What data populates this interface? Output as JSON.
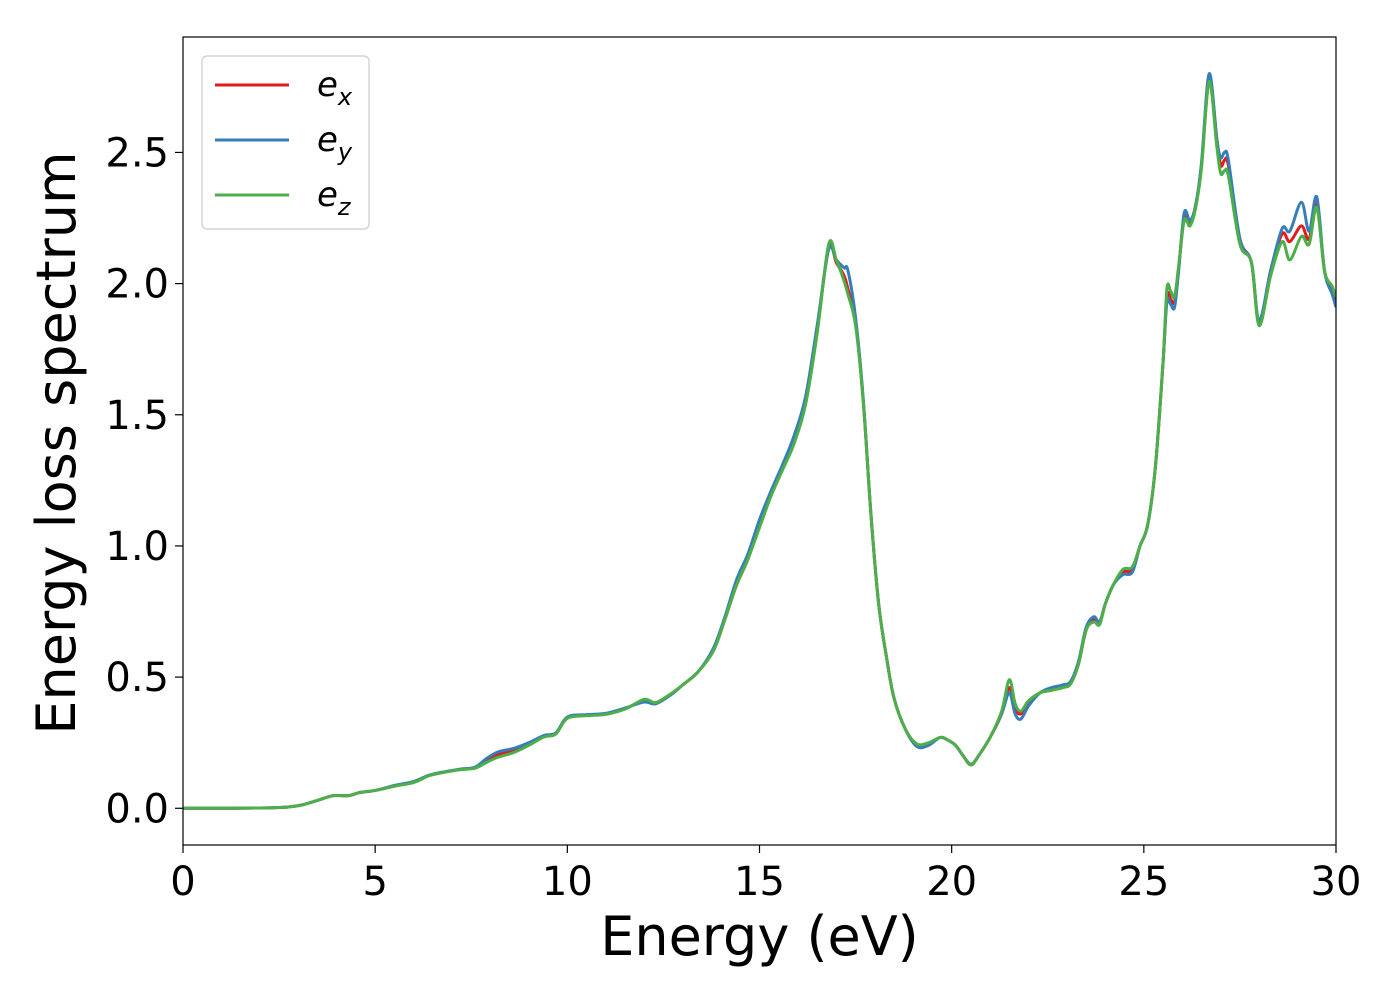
{
  "chart_data": {
    "type": "line",
    "xlabel": "Energy (eV)",
    "ylabel": "Energy loss spectrum",
    "xlim": [
      0,
      30
    ],
    "ylim": [
      -0.14,
      2.94
    ],
    "xticks": [
      0,
      5,
      10,
      15,
      20,
      25,
      30
    ],
    "yticks": [
      0.0,
      0.5,
      1.0,
      1.5,
      2.0,
      2.5
    ],
    "xtick_labels": [
      "0",
      "5",
      "10",
      "15",
      "20",
      "25",
      "30"
    ],
    "ytick_labels": [
      "0.0",
      "0.5",
      "1.0",
      "1.5",
      "2.0",
      "2.5"
    ],
    "grid": false,
    "legend": "top-left",
    "series": [
      {
        "name": "e_x",
        "base": "e",
        "sub": "x",
        "color": "#e41a1c",
        "x": [
          0,
          1,
          2,
          2.5,
          2.8,
          3.1,
          3.5,
          3.9,
          4.3,
          4.6,
          5.0,
          5.5,
          6.0,
          6.4,
          6.8,
          7.2,
          7.6,
          7.9,
          8.2,
          8.6,
          9.0,
          9.4,
          9.7,
          10.0,
          10.5,
          11.0,
          11.5,
          12.0,
          12.3,
          12.7,
          13.0,
          13.4,
          13.8,
          14.1,
          14.4,
          14.7,
          15.0,
          15.3,
          15.6,
          15.9,
          16.2,
          16.5,
          16.8,
          17.0,
          17.2,
          17.3,
          17.5,
          17.7,
          17.9,
          18.1,
          18.3,
          18.5,
          18.8,
          19.1,
          19.4,
          19.7,
          19.9,
          20.1,
          20.3,
          20.5,
          20.7,
          21.0,
          21.3,
          21.5,
          21.65,
          21.8,
          22.0,
          22.3,
          22.6,
          22.9,
          23.1,
          23.3,
          23.5,
          23.7,
          23.85,
          24.0,
          24.2,
          24.45,
          24.7,
          24.9,
          25.1,
          25.3,
          25.5,
          25.6,
          25.7,
          25.8,
          25.9,
          26.05,
          26.2,
          26.35,
          26.5,
          26.7,
          26.9,
          27.0,
          27.1,
          27.2,
          27.5,
          27.8,
          28.0,
          28.3,
          28.6,
          28.8,
          29.1,
          29.3,
          29.5,
          29.7,
          29.9,
          30.0
        ],
        "y": [
          0,
          0,
          0.001,
          0.003,
          0.006,
          0.013,
          0.03,
          0.048,
          0.048,
          0.06,
          0.068,
          0.085,
          0.1,
          0.125,
          0.138,
          0.148,
          0.155,
          0.18,
          0.205,
          0.22,
          0.245,
          0.275,
          0.285,
          0.345,
          0.355,
          0.36,
          0.38,
          0.41,
          0.4,
          0.435,
          0.47,
          0.52,
          0.6,
          0.72,
          0.85,
          0.95,
          1.08,
          1.2,
          1.3,
          1.4,
          1.55,
          1.82,
          2.14,
          2.08,
          2.03,
          1.98,
          1.85,
          1.55,
          1.12,
          0.78,
          0.58,
          0.42,
          0.3,
          0.24,
          0.245,
          0.27,
          0.26,
          0.24,
          0.2,
          0.165,
          0.2,
          0.27,
          0.36,
          0.46,
          0.38,
          0.36,
          0.4,
          0.44,
          0.45,
          0.47,
          0.48,
          0.55,
          0.68,
          0.72,
          0.71,
          0.78,
          0.85,
          0.9,
          0.91,
          1.0,
          1.08,
          1.3,
          1.7,
          1.95,
          1.94,
          1.93,
          2.05,
          2.25,
          2.23,
          2.3,
          2.45,
          2.78,
          2.55,
          2.45,
          2.47,
          2.45,
          2.17,
          2.08,
          1.85,
          2.05,
          2.19,
          2.16,
          2.22,
          2.17,
          2.31,
          2.05,
          1.98,
          1.92
        ]
      },
      {
        "name": "e_y",
        "base": "e",
        "sub": "y",
        "color": "#377eb8",
        "x": [
          0,
          1,
          2,
          2.5,
          2.8,
          3.1,
          3.5,
          3.9,
          4.3,
          4.6,
          5.0,
          5.5,
          6.0,
          6.4,
          6.8,
          7.2,
          7.6,
          7.9,
          8.2,
          8.6,
          9.0,
          9.4,
          9.7,
          10.0,
          10.5,
          11.0,
          11.5,
          12.0,
          12.3,
          12.7,
          13.0,
          13.4,
          13.8,
          14.1,
          14.4,
          14.7,
          15.0,
          15.3,
          15.6,
          15.9,
          16.2,
          16.5,
          16.8,
          17.0,
          17.2,
          17.3,
          17.5,
          17.7,
          17.9,
          18.1,
          18.3,
          18.5,
          18.8,
          19.1,
          19.4,
          19.7,
          19.9,
          20.1,
          20.3,
          20.5,
          20.7,
          21.0,
          21.3,
          21.5,
          21.65,
          21.8,
          22.0,
          22.3,
          22.6,
          22.9,
          23.1,
          23.3,
          23.5,
          23.7,
          23.85,
          24.0,
          24.2,
          24.45,
          24.7,
          24.9,
          25.1,
          25.3,
          25.5,
          25.6,
          25.7,
          25.8,
          25.9,
          26.05,
          26.2,
          26.35,
          26.5,
          26.7,
          26.9,
          27.0,
          27.1,
          27.2,
          27.5,
          27.8,
          28.0,
          28.3,
          28.6,
          28.8,
          29.1,
          29.3,
          29.5,
          29.7,
          29.9,
          30.0
        ],
        "y": [
          0,
          0,
          0.001,
          0.003,
          0.006,
          0.013,
          0.03,
          0.048,
          0.048,
          0.06,
          0.068,
          0.087,
          0.102,
          0.126,
          0.139,
          0.149,
          0.157,
          0.19,
          0.215,
          0.228,
          0.25,
          0.278,
          0.287,
          0.348,
          0.357,
          0.362,
          0.382,
          0.405,
          0.398,
          0.433,
          0.47,
          0.52,
          0.61,
          0.73,
          0.87,
          0.97,
          1.1,
          1.21,
          1.31,
          1.42,
          1.57,
          1.84,
          2.13,
          2.09,
          2.06,
          2.05,
          1.87,
          1.56,
          1.12,
          0.78,
          0.58,
          0.42,
          0.3,
          0.235,
          0.24,
          0.27,
          0.26,
          0.24,
          0.2,
          0.168,
          0.2,
          0.27,
          0.36,
          0.44,
          0.36,
          0.34,
          0.39,
          0.44,
          0.46,
          0.47,
          0.485,
          0.56,
          0.69,
          0.73,
          0.71,
          0.78,
          0.85,
          0.89,
          0.9,
          1.0,
          1.08,
          1.3,
          1.7,
          1.93,
          1.92,
          1.91,
          2.04,
          2.27,
          2.24,
          2.3,
          2.46,
          2.8,
          2.55,
          2.48,
          2.5,
          2.47,
          2.17,
          2.08,
          1.86,
          2.05,
          2.21,
          2.2,
          2.31,
          2.2,
          2.33,
          2.05,
          1.96,
          1.91
        ]
      },
      {
        "name": "e_z",
        "base": "e",
        "sub": "z",
        "color": "#4daf4a",
        "x": [
          0,
          1,
          2,
          2.5,
          2.8,
          3.1,
          3.5,
          3.9,
          4.3,
          4.6,
          5.0,
          5.5,
          6.0,
          6.4,
          6.8,
          7.2,
          7.6,
          7.9,
          8.2,
          8.6,
          9.0,
          9.4,
          9.7,
          10.0,
          10.5,
          11.0,
          11.5,
          12.0,
          12.3,
          12.7,
          13.0,
          13.4,
          13.8,
          14.1,
          14.4,
          14.7,
          15.0,
          15.3,
          15.6,
          15.9,
          16.2,
          16.5,
          16.8,
          17.0,
          17.2,
          17.3,
          17.5,
          17.7,
          17.9,
          18.1,
          18.3,
          18.5,
          18.8,
          19.1,
          19.4,
          19.7,
          19.9,
          20.1,
          20.3,
          20.5,
          20.7,
          21.0,
          21.3,
          21.5,
          21.65,
          21.8,
          22.0,
          22.3,
          22.6,
          22.9,
          23.1,
          23.3,
          23.5,
          23.7,
          23.85,
          24.0,
          24.2,
          24.45,
          24.7,
          24.9,
          25.1,
          25.3,
          25.5,
          25.6,
          25.7,
          25.8,
          25.9,
          26.05,
          26.2,
          26.35,
          26.5,
          26.7,
          26.9,
          27.0,
          27.1,
          27.2,
          27.5,
          27.8,
          28.0,
          28.3,
          28.6,
          28.8,
          29.1,
          29.3,
          29.5,
          29.7,
          29.9,
          30.0
        ],
        "y": [
          0,
          0,
          0.001,
          0.003,
          0.006,
          0.013,
          0.03,
          0.048,
          0.048,
          0.06,
          0.068,
          0.084,
          0.098,
          0.124,
          0.137,
          0.147,
          0.153,
          0.175,
          0.195,
          0.212,
          0.24,
          0.272,
          0.283,
          0.343,
          0.353,
          0.358,
          0.378,
          0.415,
          0.403,
          0.437,
          0.47,
          0.52,
          0.6,
          0.72,
          0.85,
          0.95,
          1.07,
          1.19,
          1.29,
          1.39,
          1.54,
          1.81,
          2.15,
          2.09,
          2.01,
          1.96,
          1.84,
          1.55,
          1.12,
          0.78,
          0.58,
          0.42,
          0.3,
          0.245,
          0.25,
          0.27,
          0.26,
          0.24,
          0.2,
          0.165,
          0.2,
          0.27,
          0.37,
          0.49,
          0.4,
          0.37,
          0.41,
          0.44,
          0.45,
          0.46,
          0.475,
          0.55,
          0.68,
          0.71,
          0.7,
          0.78,
          0.85,
          0.91,
          0.92,
          1.0,
          1.08,
          1.3,
          1.7,
          1.98,
          1.97,
          1.95,
          2.06,
          2.24,
          2.22,
          2.29,
          2.44,
          2.77,
          2.52,
          2.42,
          2.43,
          2.41,
          2.15,
          2.08,
          1.84,
          2.03,
          2.16,
          2.09,
          2.18,
          2.15,
          2.29,
          2.05,
          1.99,
          1.95
        ]
      }
    ]
  }
}
